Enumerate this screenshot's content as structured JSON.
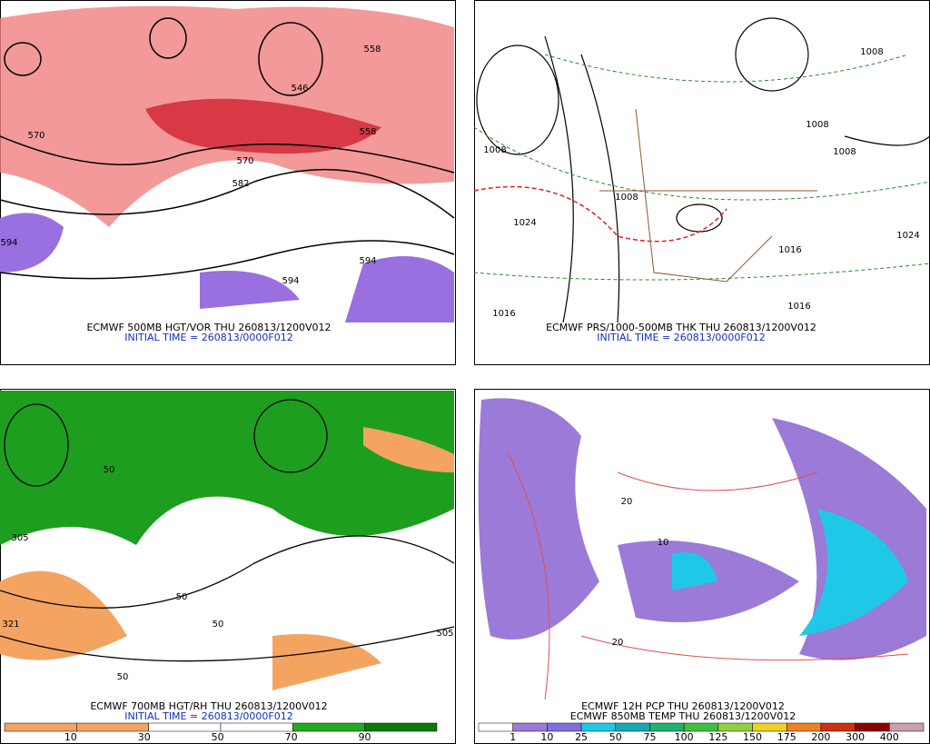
{
  "panels": [
    {
      "title": "ECMWF 500MB HGT/VOR THU 260813/1200V012",
      "subtitle": "INITIAL TIME = 260813/0000F012",
      "labels": [
        "570",
        "594",
        "546",
        "558",
        "570",
        "582",
        "594",
        "594",
        "558"
      ]
    },
    {
      "title": "ECMWF PRS/1000-500MB THK THU 260813/1200V012",
      "subtitle": "INITIAL TIME = 260813/0000F012",
      "labels": [
        "1008",
        "1024",
        "1016",
        "1008",
        "1016",
        "1024",
        "1008",
        "1008",
        "1016",
        "1008"
      ]
    },
    {
      "title": "ECMWF 700MB HGT/RH THU 260813/1200V012",
      "subtitle": "INITIAL TIME = 260813/0000F012",
      "labels": [
        "50",
        "50",
        "321",
        "305",
        "50",
        "50",
        "505"
      ],
      "colorbar": {
        "colors": [
          "#f4a460",
          "#f4a460",
          "#ffffff",
          "#ffffff",
          "#22aa22",
          "#0a7a0a"
        ],
        "labels": [
          10,
          30,
          50,
          70,
          90
        ]
      }
    },
    {
      "title": "ECMWF 12H PCP THU 260813/1200V012",
      "subtitle": "ECMWF 850MB TEMP THU 260813/1200V012",
      "labels": [
        "20",
        "10",
        "20"
      ],
      "colorbar": {
        "colors": [
          "#ffffff",
          "#9b7ad8",
          "#7f6fe0",
          "#20c8e8",
          "#18a8b8",
          "#20b070",
          "#40c040",
          "#90d040",
          "#f0d020",
          "#f08020",
          "#d03010",
          "#900000",
          "#c8a0b0"
        ],
        "labels": [
          1,
          10,
          25,
          50,
          75,
          100,
          125,
          150,
          175,
          200,
          300,
          400
        ]
      }
    }
  ]
}
